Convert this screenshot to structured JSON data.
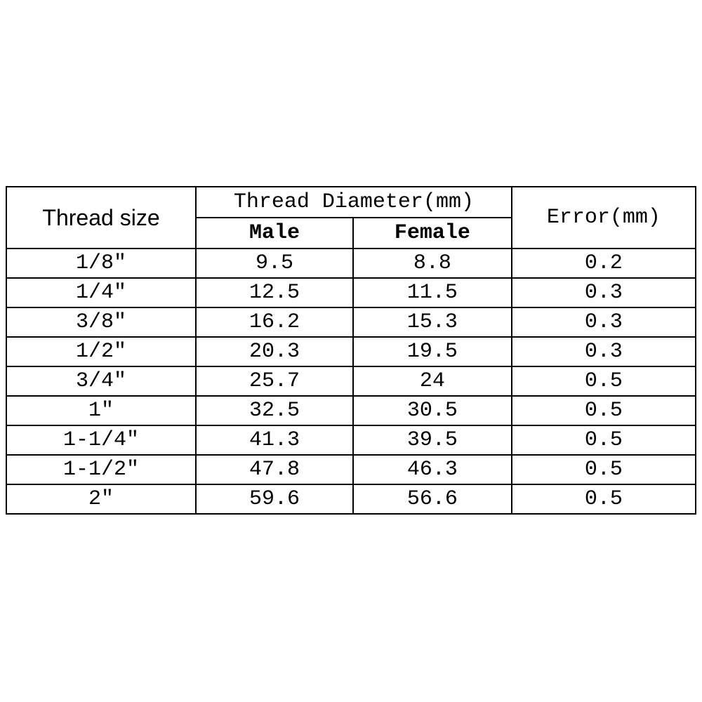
{
  "table": {
    "type": "table",
    "background_color": "#ffffff",
    "border_color": "#000000",
    "text_color": "#000000",
    "font_family_mono": "Courier New",
    "font_family_sans": "Arial",
    "header_fontsize": 30,
    "data_fontsize": 30,
    "headers": {
      "thread_size": "Thread size",
      "thread_diameter": "Thread Diameter(mm)",
      "male": "Male",
      "female": "Female",
      "error": "Error(mm)"
    },
    "column_widths_pct": [
      27.5,
      22.8,
      23.0,
      26.7
    ],
    "rows": [
      {
        "size": "1/8″",
        "male": "9.5",
        "female": "8.8",
        "error": "0.2"
      },
      {
        "size": "1/4″",
        "male": "12.5",
        "female": "11.5",
        "error": "0.3"
      },
      {
        "size": "3/8″",
        "male": "16.2",
        "female": "15.3",
        "error": "0.3"
      },
      {
        "size": "1/2″",
        "male": "20.3",
        "female": "19.5",
        "error": "0.3"
      },
      {
        "size": "3/4″",
        "male": "25.7",
        "female": "24",
        "error": "0.5"
      },
      {
        "size": "1″",
        "male": "32.5",
        "female": "30.5",
        "error": "0.5"
      },
      {
        "size": "1-1/4″",
        "male": "41.3",
        "female": "39.5",
        "error": "0.5"
      },
      {
        "size": "1-1/2″",
        "male": "47.8",
        "female": "46.3",
        "error": "0.5"
      },
      {
        "size": "2″",
        "male": "59.6",
        "female": "56.6",
        "error": "0.5"
      }
    ]
  }
}
